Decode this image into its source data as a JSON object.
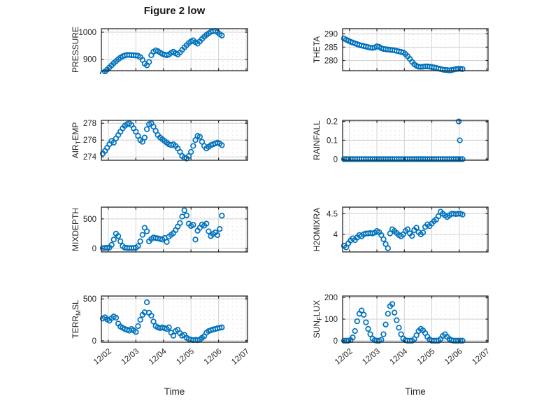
{
  "figure": {
    "title": "Figure 2 low",
    "xlabel": "Time",
    "marker_color": "#0072BD",
    "axis_color": "#262626",
    "grid_color": "#d2d2d2",
    "minor_grid_color": "#dcdcdc",
    "text_color": "#262626",
    "xlim": [
      1.75,
      7.05
    ],
    "xticks": [
      2,
      3,
      4,
      5,
      6,
      7
    ],
    "xticklabels": [
      "12/02",
      "12/03",
      "12/04",
      "12/05",
      "12/06",
      "12/07"
    ],
    "x": [
      1.8,
      1.88,
      1.96,
      2.04,
      2.12,
      2.2,
      2.28,
      2.36,
      2.44,
      2.52,
      2.6,
      2.68,
      2.76,
      2.84,
      2.92,
      3.0,
      3.08,
      3.16,
      3.24,
      3.32,
      3.4,
      3.48,
      3.56,
      3.64,
      3.72,
      3.8,
      3.88,
      3.96,
      4.04,
      4.12,
      4.2,
      4.28,
      4.36,
      4.44,
      4.52,
      4.6,
      4.68,
      4.76,
      4.84,
      4.92,
      5.0,
      5.08,
      5.16,
      5.24,
      5.32,
      5.4,
      5.48,
      5.56,
      5.64,
      5.72,
      5.8,
      5.88,
      5.96,
      6.04,
      6.12
    ]
  },
  "chart_data": [
    {
      "id": "pressure",
      "type": "scatter",
      "title": "",
      "ylabel": "PRESSURE",
      "ylabel_parts": [
        {
          "t": "PRESSURE",
          "sub": false
        }
      ],
      "yticks": [
        900,
        1000
      ],
      "ylim": [
        858,
        1013
      ],
      "y": [
        848,
        855,
        862,
        870,
        878,
        886,
        893,
        900,
        906,
        911,
        914,
        916,
        916,
        915,
        915,
        914,
        913,
        908,
        898,
        884,
        878,
        890,
        915,
        928,
        933,
        930,
        925,
        920,
        917,
        915,
        918,
        924,
        928,
        922,
        918,
        925,
        935,
        944,
        952,
        960,
        966,
        970,
        963,
        958,
        966,
        975,
        983,
        990,
        996,
        1001,
        1004,
        1005,
        1000,
        993,
        988
      ]
    },
    {
      "id": "theta",
      "type": "scatter",
      "title": "",
      "ylabel": "THETA",
      "ylabel_parts": [
        {
          "t": "THETA",
          "sub": false
        }
      ],
      "yticks": [
        280,
        285,
        290
      ],
      "ylim": [
        276.2,
        291.9
      ],
      "y": [
        288.2,
        287.8,
        287.4,
        287.0,
        286.7,
        286.4,
        286.1,
        285.8,
        285.6,
        285.4,
        285.2,
        285.0,
        284.8,
        284.7,
        284.9,
        285.3,
        285.1,
        284.6,
        284.3,
        284.2,
        284.1,
        284.0,
        283.9,
        283.8,
        283.6,
        283.4,
        283.2,
        283.0,
        282.4,
        281.6,
        280.6,
        279.5,
        278.6,
        278.0,
        277.7,
        277.6,
        277.7,
        277.8,
        277.8,
        277.7,
        277.6,
        277.4,
        277.2,
        277.0,
        276.8,
        276.6,
        276.5,
        276.4,
        276.3,
        276.4,
        276.6,
        276.8,
        276.9,
        276.9,
        276.8
      ]
    },
    {
      "id": "airtemp",
      "type": "scatter",
      "title": "",
      "ylabel": "AIR_TEMP",
      "ylabel_parts": [
        {
          "t": "AIR",
          "sub": false
        },
        {
          "t": "T",
          "sub": true
        },
        {
          "t": "EMP",
          "sub": false
        }
      ],
      "yticks": [
        274,
        276,
        278
      ],
      "ylim": [
        273.6,
        278.35
      ],
      "y": [
        274.4,
        274.7,
        275.1,
        275.5,
        275.9,
        275.7,
        276.2,
        276.6,
        277.0,
        277.4,
        277.7,
        277.9,
        278.0,
        277.8,
        277.4,
        277.0,
        276.5,
        276.0,
        275.8,
        276.3,
        277.3,
        277.9,
        278.0,
        277.6,
        277.1,
        276.6,
        276.3,
        276.1,
        275.9,
        275.7,
        275.5,
        275.4,
        275.5,
        275.3,
        275.0,
        274.6,
        274.1,
        273.9,
        273.8,
        274.1,
        274.6,
        275.3,
        276.0,
        276.5,
        276.4,
        275.8,
        275.3,
        275.0,
        275.2,
        275.4,
        275.5,
        275.6,
        275.7,
        275.6,
        275.4
      ]
    },
    {
      "id": "rainfall",
      "type": "scatter",
      "title": "",
      "ylabel": "RAINFALL",
      "ylabel_parts": [
        {
          "t": "RAINFALL",
          "sub": false
        }
      ],
      "yticks": [
        0,
        0.1,
        0.2
      ],
      "ylim": [
        -0.006,
        0.206
      ],
      "x": [
        1.8,
        1.88,
        1.96,
        2.04,
        2.12,
        2.2,
        2.28,
        2.36,
        2.44,
        2.52,
        2.6,
        2.68,
        2.76,
        2.84,
        2.92,
        3.0,
        3.08,
        3.16,
        3.24,
        3.32,
        3.4,
        3.48,
        3.56,
        3.64,
        3.72,
        3.8,
        3.88,
        3.96,
        4.04,
        4.12,
        4.2,
        4.28,
        4.36,
        4.44,
        4.52,
        4.6,
        4.68,
        4.76,
        4.84,
        4.92,
        5.0,
        5.08,
        5.16,
        5.24,
        5.32,
        5.4,
        5.48,
        5.56,
        5.64,
        5.72,
        5.8,
        5.88,
        5.96,
        6.04,
        6.12,
        5.98,
        6.02
      ],
      "y": [
        0,
        0,
        0,
        0,
        0,
        0,
        0,
        0,
        0,
        0,
        0,
        0,
        0,
        0,
        0,
        0,
        0,
        0,
        0,
        0,
        0,
        0,
        0,
        0,
        0,
        0,
        0,
        0,
        0,
        0,
        0,
        0,
        0,
        0,
        0,
        0,
        0,
        0,
        0,
        0,
        0,
        0,
        0,
        0,
        0,
        0,
        0,
        0,
        0,
        0,
        0,
        0,
        0,
        0,
        0,
        0.2,
        0.1
      ]
    },
    {
      "id": "mixdepth",
      "type": "scatter",
      "title": "",
      "ylabel": "MIXDEPTH",
      "ylabel_parts": [
        {
          "t": "MIXDEPTH",
          "sub": false
        }
      ],
      "yticks": [
        0,
        500
      ],
      "ylim": [
        -60,
        700
      ],
      "y": [
        5,
        8,
        10,
        15,
        60,
        150,
        250,
        210,
        120,
        40,
        12,
        8,
        5,
        6,
        8,
        12,
        40,
        120,
        230,
        350,
        290,
        120,
        160,
        185,
        175,
        170,
        160,
        150,
        175,
        110,
        200,
        230,
        260,
        310,
        370,
        430,
        540,
        645,
        560,
        420,
        380,
        400,
        150,
        300,
        350,
        405,
        385,
        420,
        290,
        210,
        245,
        270,
        225,
        330,
        555
      ]
    },
    {
      "id": "h2omixra",
      "type": "scatter",
      "title": "",
      "ylabel": "H2OMIXRA",
      "ylabel_parts": [
        {
          "t": "H2OMIXRA",
          "sub": false
        }
      ],
      "yticks": [
        4,
        4.5
      ],
      "ylim": [
        3.57,
        4.66
      ],
      "y": [
        3.72,
        3.68,
        3.78,
        3.85,
        3.9,
        3.86,
        3.92,
        3.98,
        3.95,
        4.0,
        4.02,
        4.02,
        4.03,
        4.02,
        4.04,
        4.08,
        4.05,
        3.98,
        3.88,
        3.76,
        3.66,
        4.02,
        4.12,
        4.08,
        4.03,
        3.98,
        3.95,
        4.0,
        4.08,
        4.12,
        4.02,
        3.96,
        4.1,
        4.16,
        4.05,
        4.0,
        4.04,
        4.18,
        4.24,
        4.2,
        4.26,
        4.32,
        4.36,
        4.44,
        4.55,
        4.5,
        4.46,
        4.42,
        4.46,
        4.5,
        4.5,
        4.49,
        4.5,
        4.5,
        4.48
      ]
    },
    {
      "id": "terrmsl",
      "type": "scatter",
      "title": "",
      "ylabel": "TERR_MSL",
      "ylabel_parts": [
        {
          "t": "TERR",
          "sub": false
        },
        {
          "t": "M",
          "sub": true
        },
        {
          "t": "SL",
          "sub": false
        }
      ],
      "yticks": [
        0,
        500
      ],
      "ylim": [
        -18,
        535
      ],
      "y": [
        265,
        280,
        255,
        240,
        270,
        290,
        275,
        205,
        170,
        155,
        140,
        130,
        120,
        140,
        125,
        105,
        175,
        250,
        310,
        340,
        460,
        335,
        300,
        230,
        175,
        160,
        150,
        160,
        150,
        140,
        160,
        95,
        60,
        115,
        130,
        90,
        60,
        70,
        35,
        20,
        12,
        6,
        10,
        6,
        14,
        35,
        55,
        95,
        115,
        125,
        135,
        140,
        148,
        155,
        160
      ]
    },
    {
      "id": "sunflux",
      "type": "scatter",
      "title": "",
      "ylabel": "SUN_FLUX",
      "ylabel_parts": [
        {
          "t": "SUN",
          "sub": false
        },
        {
          "t": "F",
          "sub": true
        },
        {
          "t": "LUX",
          "sub": false
        }
      ],
      "yticks": [
        0,
        100,
        200
      ],
      "ylim": [
        -7,
        207
      ],
      "y": [
        0,
        0,
        0,
        3,
        15,
        45,
        90,
        125,
        140,
        120,
        85,
        55,
        30,
        10,
        2,
        0,
        0,
        4,
        30,
        75,
        125,
        160,
        170,
        130,
        95,
        60,
        30,
        10,
        2,
        0,
        0,
        0,
        8,
        25,
        45,
        55,
        48,
        35,
        18,
        6,
        0,
        0,
        0,
        0,
        8,
        22,
        30,
        18,
        8,
        2,
        0,
        0,
        0,
        0,
        0
      ]
    }
  ]
}
